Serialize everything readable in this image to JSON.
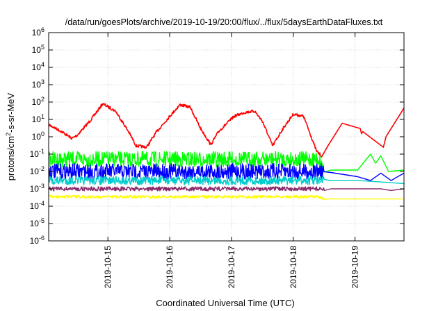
{
  "chart_data": {
    "type": "line",
    "title": "/data/run/goesPlots/archive/2019-10-19/20:00/flux/../flux/5daysEarthDataFluxes.txt",
    "xlabel": "Coordinated Universal Time (UTC)",
    "ylabel": {
      "prefix": "protons/cm",
      "sup": "2",
      "suffix": "-s-sr-MeV"
    },
    "yscale": "log",
    "ylim": [
      1e-06,
      1000000.0
    ],
    "xlim": [
      "2019-10-14T01:00",
      "2019-10-19T19:00"
    ],
    "grid": true,
    "legend": "none",
    "y_ticks": [
      {
        "value": 1e-06,
        "mantissa": "10",
        "exp": "-6"
      },
      {
        "value": 1e-05,
        "mantissa": "10",
        "exp": "-5"
      },
      {
        "value": 0.0001,
        "mantissa": "10",
        "exp": "-4"
      },
      {
        "value": 0.001,
        "mantissa": "10",
        "exp": "-3"
      },
      {
        "value": 0.01,
        "mantissa": "10",
        "exp": "-2"
      },
      {
        "value": 0.1,
        "mantissa": "10",
        "exp": "-1"
      },
      {
        "value": 1,
        "mantissa": "10",
        "exp": "0"
      },
      {
        "value": 10,
        "mantissa": "10",
        "exp": "1"
      },
      {
        "value": 100,
        "mantissa": "10",
        "exp": "2"
      },
      {
        "value": 1000,
        "mantissa": "10",
        "exp": "3"
      },
      {
        "value": 10000,
        "mantissa": "10",
        "exp": "4"
      },
      {
        "value": 100000,
        "mantissa": "10",
        "exp": "5"
      },
      {
        "value": 1000000,
        "mantissa": "10",
        "exp": "6"
      }
    ],
    "x_ticks": [
      {
        "value": "2019-10-15T00:00",
        "label": "2019-10-15"
      },
      {
        "value": "2019-10-16T00:00",
        "label": "2019-10-16"
      },
      {
        "value": "2019-10-17T00:00",
        "label": "2019-10-17"
      },
      {
        "value": "2019-10-18T00:00",
        "label": "2019-10-18"
      },
      {
        "value": "2019-10-19T00:00",
        "label": "2019-10-19"
      }
    ],
    "series": [
      {
        "color": "#ff0000",
        "x": [
          "2019-10-14T01:00",
          "2019-10-14T06:00",
          "2019-10-14T10:00",
          "2019-10-14T12:00",
          "2019-10-14T17:00",
          "2019-10-14T22:00",
          "2019-10-15T03:00",
          "2019-10-15T08:00",
          "2019-10-15T11:00",
          "2019-10-15T15:00",
          "2019-10-15T19:00",
          "2019-10-16T00:00",
          "2019-10-16T04:00",
          "2019-10-16T08:00",
          "2019-10-16T12:00",
          "2019-10-16T16:00",
          "2019-10-16T19:00",
          "2019-10-17T01:00",
          "2019-10-17T05:00",
          "2019-10-17T09:00",
          "2019-10-17T12:00",
          "2019-10-17T16:00",
          "2019-10-17T20:00",
          "2019-10-18T00:00",
          "2019-10-18T04:00",
          "2019-10-18T07:00",
          "2019-10-18T09:00",
          "2019-10-18T11:00",
          "2019-10-18T19:00",
          "2019-10-19T02:00",
          "2019-10-19T02:30",
          "2019-10-19T03:00",
          "2019-10-19T07:00",
          "2019-10-19T11:00",
          "2019-10-19T12:00",
          "2019-10-19T19:00"
        ],
        "y": [
          5,
          2,
          0.8,
          1.2,
          8,
          80,
          30,
          2,
          0.3,
          0.25,
          2,
          15,
          70,
          50,
          3,
          0.35,
          2,
          15,
          25,
          30,
          8,
          0.3,
          3,
          20,
          15,
          1,
          0.15,
          0.08,
          6,
          3,
          1.5,
          2,
          0.7,
          0.25,
          1,
          45
        ]
      },
      {
        "color": "#00ff00",
        "x": [
          "2019-10-14T01:00",
          "2019-10-18T10:00",
          "2019-10-18T12:00",
          "2019-10-19T01:00",
          "2019-10-19T06:00",
          "2019-10-19T08:00",
          "2019-10-19T10:00",
          "2019-10-19T13:00",
          "2019-10-19T19:00"
        ],
        "y": [
          0.05,
          0.05,
          0.012,
          0.012,
          0.1,
          0.03,
          0.08,
          0.01,
          0.012
        ]
      },
      {
        "color": "#0000ff",
        "x": [
          "2019-10-14T01:00",
          "2019-10-18T10:00",
          "2019-10-18T12:00",
          "2019-10-19T01:00",
          "2019-10-19T06:00",
          "2019-10-19T10:00",
          "2019-10-19T14:00",
          "2019-10-19T19:00"
        ],
        "y": [
          0.01,
          0.01,
          0.01,
          0.005,
          0.003,
          0.008,
          0.003,
          0.008
        ]
      },
      {
        "color": "#00cccc",
        "x": [
          "2019-10-14T01:00",
          "2019-10-18T10:00",
          "2019-10-18T12:00",
          "2019-10-19T01:00",
          "2019-10-19T10:00",
          "2019-10-19T19:00"
        ],
        "y": [
          0.003,
          0.003,
          0.003,
          0.003,
          0.0025,
          0.002
        ]
      },
      {
        "color": "#8b2a6a",
        "x": [
          "2019-10-14T01:00",
          "2019-10-18T10:00",
          "2019-10-18T12:00",
          "2019-10-19T01:00",
          "2019-10-19T10:00",
          "2019-10-19T14:00",
          "2019-10-19T19:00"
        ],
        "y": [
          0.001,
          0.001,
          0.001,
          0.001,
          0.001,
          0.0008,
          0.001
        ]
      },
      {
        "color": "#ffff00",
        "x": [
          "2019-10-14T01:00",
          "2019-10-18T10:00",
          "2019-10-18T12:00",
          "2019-10-19T19:00"
        ],
        "y": [
          0.00035,
          0.00035,
          0.00026,
          0.00026
        ]
      }
    ]
  }
}
